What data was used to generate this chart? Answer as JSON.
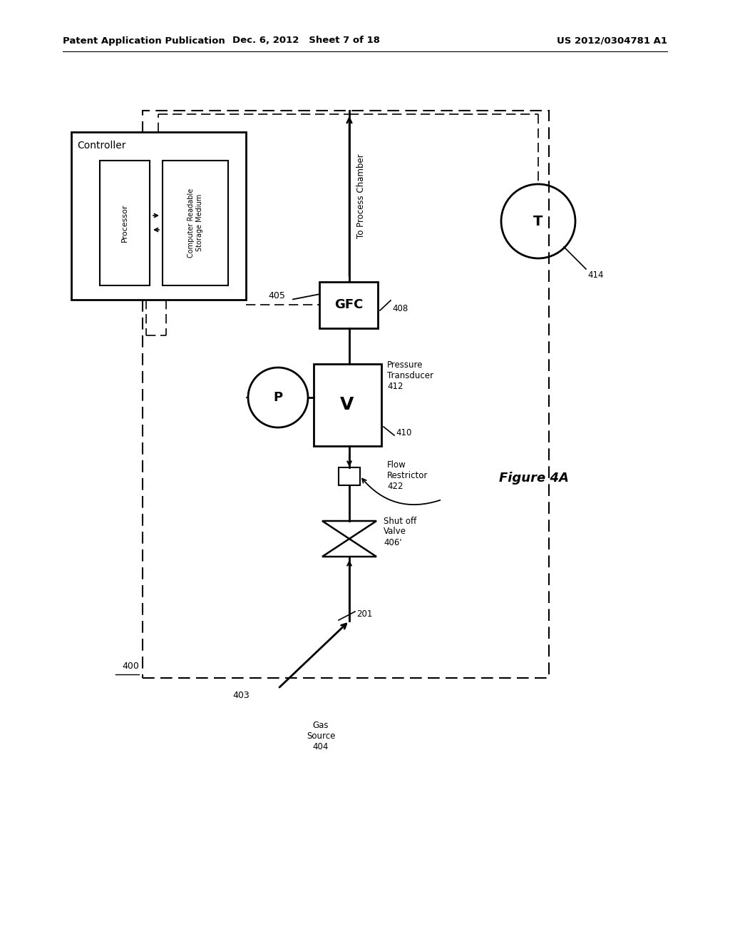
{
  "bg_color": "#ffffff",
  "header_left": "Patent Application Publication",
  "header_mid": "Dec. 6, 2012   Sheet 7 of 18",
  "header_right": "US 2012/0304781 A1",
  "figure_label": "Figure 4A"
}
